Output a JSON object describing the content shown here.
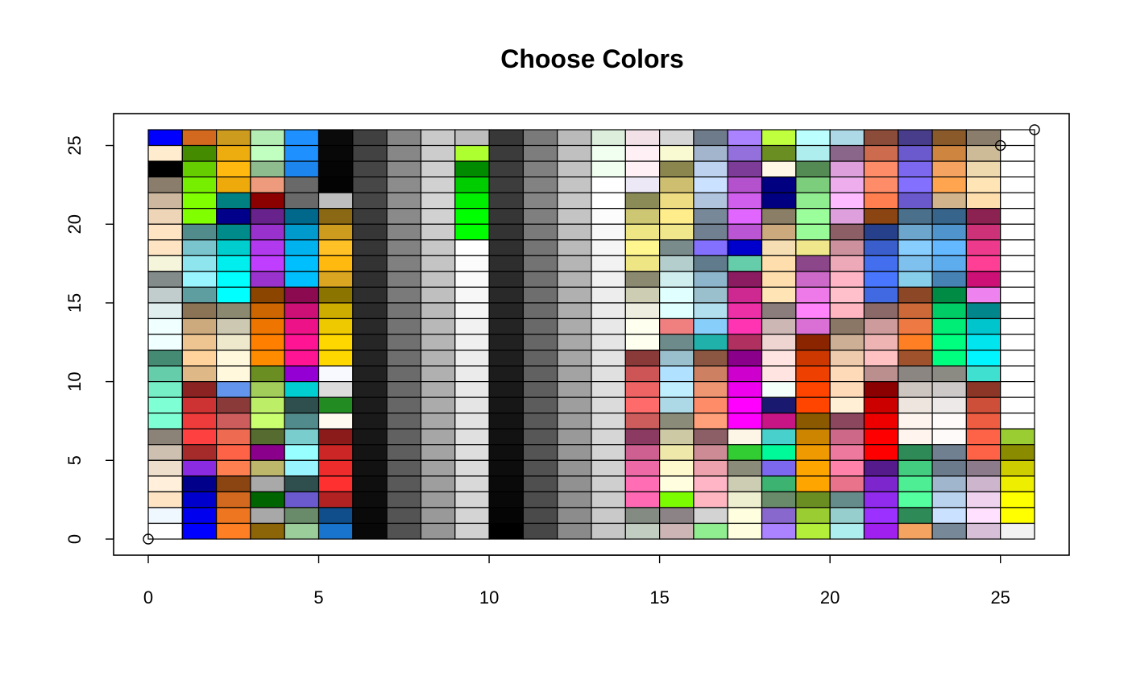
{
  "chart_data": {
    "type": "heatmap",
    "title": "Choose Colors",
    "xlabel": "",
    "ylabel": "",
    "xlim": [
      0,
      26
    ],
    "ylim": [
      0,
      26
    ],
    "x_ticks": [
      0,
      5,
      10,
      15,
      20,
      25
    ],
    "y_ticks": [
      0,
      5,
      10,
      15,
      20,
      25
    ],
    "points": [
      {
        "x": 0,
        "y": 0
      },
      {
        "x": 25,
        "y": 25
      },
      {
        "x": 26,
        "y": 26
      }
    ],
    "rows_top_to_bottom": [
      [
        "#0000FF",
        "#D2691E",
        "#CD9B1D",
        "#B4EEB4",
        "#1E90FF",
        "#0A0A0A",
        "#404040",
        "#858585",
        "#C9C9C9",
        "#BDBDBD",
        "#383838",
        "#7A7A7A",
        "#BABABA",
        "#DDEEDD",
        "#F2E1E6",
        "#D6D6D6",
        "#6E7B8B",
        "#AB82FF",
        "#C0FF3E",
        "#BBFFFF",
        "#ADD8E6",
        "#8B4C39",
        "#483D8B",
        "#8B5A2B",
        "#8B7D6B",
        "#FFFFFF"
      ],
      [
        "#FFEBCD",
        "#458B00",
        "#EEAD0E",
        "#C1FFC1",
        "#1E90FF",
        "#080808",
        "#424242",
        "#878787",
        "#CCCCCC",
        "#ADFF2F",
        "#3B3B3B",
        "#7D7D7D",
        "#C0C0C0",
        "#F0FFF0",
        "#FFF0F5",
        "#FAFAD2",
        "#A2B5CD",
        "#9370DB",
        "#6B8E23",
        "#AEEEEE",
        "#8B668B",
        "#CD6B4F",
        "#6A5ACD",
        "#CD853F",
        "#CDBA96",
        "#FFFFFF"
      ],
      [
        "#000000",
        "#66CD00",
        "#FFB90F",
        "#8FBC8F",
        "#1C86EE",
        "#050505",
        "#454545",
        "#8A8A8A",
        "#CFCFCF",
        "#008B00",
        "#3D3D3D",
        "#808080",
        "#C2C2C2",
        "#F0FFF0",
        "#FFF0F5",
        "#8B864E",
        "#BCD2EE",
        "#7D3C98",
        "#FFF8E7",
        "#548B54",
        "#DDA0DD",
        "#FF8C69",
        "#7B68EE",
        "#F4A460",
        "#EED8AE",
        "#FFFFFF"
      ],
      [
        "#8B7D6B",
        "#76EE00",
        "#EEA90A",
        "#EE9A7C",
        "#696969",
        "#030303",
        "#474747",
        "#8C8C8C",
        "#D1D1D1",
        "#00CD00",
        "#3D3D3D",
        "#828282",
        "#C4C4C4",
        "#FFFFFF",
        "#EDE8F6",
        "#CDBE70",
        "#CAE1FF",
        "#B452CD",
        "#000080",
        "#7CCD7C",
        "#EEAEEE",
        "#FF8C69",
        "#8470FF",
        "#FFA54F",
        "#FFE4B5",
        "#FFFFFF"
      ],
      [
        "#CDB79E",
        "#7FFF00",
        "#008080",
        "#8B0000",
        "#696969",
        "#BEBEBE",
        "#474747",
        "#8F8F8F",
        "#D4D4D4",
        "#00EE00",
        "#3B3B3B",
        "#858585",
        "#C7C7C7",
        "#FFFFFF",
        "#8B8B58",
        "#EEDC82",
        "#B0C4DE",
        "#D15FEE",
        "#000080",
        "#90EE90",
        "#FFBBFF",
        "#FF7F50",
        "#6959CD",
        "#D2B48C",
        "#FFDEAD",
        "#FFFFFF"
      ],
      [
        "#EED5B7",
        "#7FFF00",
        "#00008B",
        "#68228B",
        "#00688B",
        "#8B6914",
        "#3B3B3B",
        "#8A8A8A",
        "#D1D1D1",
        "#00FF00",
        "#363636",
        "#7F7F7F",
        "#C4C4C4",
        "#FCFCFC",
        "#CDC673",
        "#FFEC8B",
        "#778899",
        "#E066FF",
        "#8B7E66",
        "#9AFF9A",
        "#DDA0DD",
        "#8B4513",
        "#4A708B",
        "#36648B",
        "#8B2252",
        "#FFFFFF"
      ],
      [
        "#FFE4C4",
        "#528B8B",
        "#008B8B",
        "#9932CC",
        "#009ACD",
        "#CD9B1D",
        "#363636",
        "#858585",
        "#CCCCCC",
        "#00FF00",
        "#333333",
        "#7A7A7A",
        "#BFBFBF",
        "#F7F7F7",
        "#EEE685",
        "#F0E68C",
        "#708090",
        "#BA55D3",
        "#CDAA7D",
        "#98FB98",
        "#8B5F65",
        "#27408B",
        "#6CA6CD",
        "#4F94CD",
        "#CD3278",
        "#FFFFFF"
      ],
      [
        "#FFE4C4",
        "#7AC5CD",
        "#00CDCD",
        "#B23AEE",
        "#00B2EE",
        "#FFC125",
        "#363636",
        "#828282",
        "#C7C7C7",
        "#FFFFFF",
        "#303030",
        "#757575",
        "#BABABA",
        "#F5F5F5",
        "#FFF68F",
        "#7A8B8B",
        "#8470FF",
        "#0000CD",
        "#F5DEB3",
        "#F0E68C",
        "#CD919E",
        "#3A5FCD",
        "#87CEFF",
        "#63B8FF",
        "#EE3A8C",
        "#FFFFFF"
      ],
      [
        "#F5F5DC",
        "#8EE5EE",
        "#00EEEE",
        "#BF3EFF",
        "#00BFFF",
        "#FFB90F",
        "#333333",
        "#808080",
        "#C4C4C4",
        "#FCFCFC",
        "#2E2E2E",
        "#737373",
        "#B5B5B5",
        "#F2F2F2",
        "#EEE685",
        "#B4CDCD",
        "#607B8B",
        "#66CDAA",
        "#FFDEAD",
        "#8B4789",
        "#EEA9B8",
        "#436EEE",
        "#7EC0EE",
        "#5CACEE",
        "#FF3E96",
        "#FFFFFF"
      ],
      [
        "#838B8B",
        "#98F5FF",
        "#00FFFF",
        "#9A32CD",
        "#00BFFF",
        "#DAA520",
        "#303030",
        "#7D7D7D",
        "#C2C2C2",
        "#FAFAFA",
        "#2B2B2B",
        "#707070",
        "#B3B3B3",
        "#F0F0F0",
        "#8B8970",
        "#D1EEEE",
        "#8DB6CD",
        "#8B1C62",
        "#FFDEAD",
        "#CD69C9",
        "#FFB5C5",
        "#4876FF",
        "#87CEEB",
        "#4682B4",
        "#CD1076",
        "#FFFFFF"
      ],
      [
        "#C1CDCD",
        "#5F9EA0",
        "#00FFFF",
        "#8B4500",
        "#8B0A50",
        "#8B7500",
        "#2E2E2E",
        "#7A7A7A",
        "#BFBFBF",
        "#F7F7F7",
        "#292929",
        "#6E6E6E",
        "#B0B0B0",
        "#EDEDED",
        "#CDCDB4",
        "#E0FFFF",
        "#9AC0CD",
        "#CD2990",
        "#FFE4B5",
        "#EE7AE9",
        "#FFC0CB",
        "#4169E1",
        "#8B4726",
        "#008B45",
        "#EE82EE",
        "#FFFFFF"
      ],
      [
        "#E0EEEE",
        "#8B7355",
        "#8B8970",
        "#CD6600",
        "#CD1076",
        "#CDAD00",
        "#2B2B2B",
        "#757575",
        "#BABABA",
        "#F5F5F5",
        "#262626",
        "#6B6B6B",
        "#ADADAD",
        "#EBEBEB",
        "#EEEEE0",
        "#E0FFFF",
        "#B2DFEE",
        "#EE30A7",
        "#8B7D7B",
        "#FF83FA",
        "#FFB6C1",
        "#8B6969",
        "#CD6839",
        "#00CD66",
        "#00868B",
        "#FFFFFF"
      ],
      [
        "#F0FFFF",
        "#CDAA7D",
        "#CDC8B1",
        "#EE7600",
        "#EE1289",
        "#EEC900",
        "#292929",
        "#737373",
        "#B8B8B8",
        "#F2F2F2",
        "#242424",
        "#696969",
        "#ABABAB",
        "#E8E8E8",
        "#FFFFF0",
        "#F08080",
        "#87CEFA",
        "#FF34B3",
        "#CDB7B5",
        "#DA70D6",
        "#8B7765",
        "#CD9B9B",
        "#EE7942",
        "#00EE76",
        "#00C5CD",
        "#FFFFFF"
      ],
      [
        "#F0FFFF",
        "#EEC591",
        "#EEE8CD",
        "#FF7F00",
        "#FF1493",
        "#FFD700",
        "#262626",
        "#707070",
        "#B5B5B5",
        "#F0F0F0",
        "#212121",
        "#666666",
        "#A8A8A8",
        "#E5E5E5",
        "#FFFFF0",
        "#6E8B8B",
        "#20B2AA",
        "#B03060",
        "#EED5D2",
        "#8B2500",
        "#CDAF95",
        "#EEB4B4",
        "#FF7F24",
        "#00FF7F",
        "#00E5EE",
        "#FFFFFF"
      ],
      [
        "#458B74",
        "#FFD39B",
        "#FFF8DC",
        "#FF8C00",
        "#FF1493",
        "#FFD700",
        "#242424",
        "#6E6E6E",
        "#B3B3B3",
        "#EDEDED",
        "#1F1F1F",
        "#636363",
        "#A6A6A6",
        "#E3E3E3",
        "#8B3A3A",
        "#9AC0CD",
        "#8B5742",
        "#8B008B",
        "#FFE4E1",
        "#CD3700",
        "#EECBAD",
        "#FFC1C1",
        "#A0522D",
        "#00FF7F",
        "#00F5FF",
        "#FFFFFF"
      ],
      [
        "#66CDAA",
        "#DEB887",
        "#FFF8DC",
        "#6B8E23",
        "#9400D3",
        "#F8F8FF",
        "#212121",
        "#6B6B6B",
        "#B0B0B0",
        "#EBEBEB",
        "#1C1C1C",
        "#616161",
        "#A3A3A3",
        "#E0E0E0",
        "#CD5555",
        "#B0E2FF",
        "#CD8162",
        "#CD00CD",
        "#FFE4E1",
        "#EE4000",
        "#FFDAB9",
        "#BC8F8F",
        "#8B8682",
        "#8B8B83",
        "#40E0D0",
        "#FFFFFF"
      ],
      [
        "#76EEC6",
        "#8B2323",
        "#6495ED",
        "#A2CD5A",
        "#00CED1",
        "#DCDCDC",
        "#1F1F1F",
        "#696969",
        "#ADADAD",
        "#E8E8E8",
        "#1A1A1A",
        "#5E5E5E",
        "#A1A1A1",
        "#DEDEDE",
        "#EE6363",
        "#BFEFFF",
        "#EE9572",
        "#EE00EE",
        "#F5FFFA",
        "#FF4500",
        "#FFDAB9",
        "#8B0000",
        "#CDC5BF",
        "#CDC9C9",
        "#8B3626",
        "#FFFFFF"
      ],
      [
        "#7FFFD4",
        "#CD3333",
        "#8B3A3A",
        "#BCEE68",
        "#2F4F4F",
        "#228B22",
        "#1C1C1C",
        "#666666",
        "#ABABAB",
        "#E5E5E5",
        "#171717",
        "#5C5C5C",
        "#9E9E9E",
        "#DBDBDB",
        "#FF6A6A",
        "#ADD8E6",
        "#FF8C69",
        "#FF00FF",
        "#191970",
        "#FF4500",
        "#FFEFD5",
        "#CD0000",
        "#EEE5DE",
        "#EEE9E9",
        "#CD4F39",
        "#FFFFFF"
      ],
      [
        "#7FFFD4",
        "#EE3B3B",
        "#CD5C5C",
        "#CAFF70",
        "#528B8B",
        "#FFFAF0",
        "#1A1A1A",
        "#636363",
        "#A8A8A8",
        "#E3E3E3",
        "#141414",
        "#595959",
        "#9C9C9C",
        "#D9D9D9",
        "#CD5C5C",
        "#8B8B7A",
        "#FFA07A",
        "#FF00FF",
        "#C71585",
        "#8B5A00",
        "#8B475D",
        "#EE0000",
        "#FFF5EE",
        "#FFFAFA",
        "#EE5C42",
        "#FFFFFF"
      ],
      [
        "#8B8378",
        "#FF4040",
        "#EE6A50",
        "#556B2F",
        "#79CDCD",
        "#8B1A1A",
        "#171717",
        "#616161",
        "#A6A6A6",
        "#E0E0E0",
        "#121212",
        "#575757",
        "#999999",
        "#D6D6D6",
        "#8B3A62",
        "#CDC9A5",
        "#8B5F65",
        "#FDF5E6",
        "#48D1CC",
        "#CD8500",
        "#CD6889",
        "#FF0000",
        "#FFF5EE",
        "#FFFAFA",
        "#FF6347",
        "#9ACD32"
      ],
      [
        "#CDC0B0",
        "#A52A2A",
        "#FF6347",
        "#8B008B",
        "#97FFFF",
        "#CD2626",
        "#141414",
        "#5E5E5E",
        "#A3A3A3",
        "#DEDEDE",
        "#0F0F0F",
        "#545454",
        "#969696",
        "#D4D4D4",
        "#CD6090",
        "#EEE8AA",
        "#CD8C95",
        "#32CD32",
        "#00FA9A",
        "#EE9A00",
        "#EE799F",
        "#FF0000",
        "#2E8B57",
        "#708090",
        "#FF6347",
        "#8B8B00"
      ],
      [
        "#EEDFCC",
        "#8A2BE2",
        "#FF7F50",
        "#BDB76B",
        "#98F5FF",
        "#EE2C2C",
        "#121212",
        "#5C5C5C",
        "#A1A1A1",
        "#DBDBDB",
        "#0D0D0D",
        "#525252",
        "#949494",
        "#D1D1D1",
        "#EE6AA7",
        "#FFFACD",
        "#EEA2AD",
        "#8B8B7A",
        "#7B68EE",
        "#FFA500",
        "#FF82AB",
        "#551A8B",
        "#43CD80",
        "#6C7B8B",
        "#8B7B8B",
        "#CDCD00"
      ],
      [
        "#FFEFDB",
        "#00008B",
        "#8B4513",
        "#A9A9A9",
        "#2F4F4F",
        "#FF3030",
        "#0F0F0F",
        "#595959",
        "#9E9E9E",
        "#D9D9D9",
        "#0A0A0A",
        "#4F4F4F",
        "#919191",
        "#CFCFCF",
        "#FF6EB4",
        "#FFFFE0",
        "#FFB5C5",
        "#CDCDB4",
        "#3CB371",
        "#FFA500",
        "#E9738B",
        "#7D26CD",
        "#4EEE94",
        "#9FB6CD",
        "#CDB5CD",
        "#EEEE00"
      ],
      [
        "#FFE4C4",
        "#0000CD",
        "#D2691E",
        "#006400",
        "#6A5ACD",
        "#B22222",
        "#0D0D0D",
        "#575757",
        "#9C9C9C",
        "#D6D6D6",
        "#080808",
        "#4D4D4D",
        "#8F8F8F",
        "#CCCCCC",
        "#FF69B4",
        "#7CFC00",
        "#FFB6C1",
        "#EEEED1",
        "#698B69",
        "#6B8E23",
        "#668B8B",
        "#912CEE",
        "#54FF9F",
        "#B9D3EE",
        "#EED2EE",
        "#FFFF00"
      ],
      [
        "#F0F8FF",
        "#0000EE",
        "#EE7621",
        "#A8A8A8",
        "#698B69",
        "#104E8B",
        "#0A0A0A",
        "#545454",
        "#999999",
        "#D4D4D4",
        "#050505",
        "#4A4A4A",
        "#8C8C8C",
        "#C9C9C9",
        "#838B83",
        "#8B8386",
        "#D3D3D3",
        "#FFFFE0",
        "#8968CD",
        "#9ACD32",
        "#96CDCD",
        "#9B30FF",
        "#2E8B57",
        "#CAE1FF",
        "#FFE1FF",
        "#FFFF00"
      ],
      [
        "#FFFFFF",
        "#0000FF",
        "#FF7F24",
        "#8B6508",
        "#9BCD9B",
        "#1874CD",
        "#080808",
        "#525252",
        "#969696",
        "#D1D1D1",
        "#000000",
        "#474747",
        "#8A8A8A",
        "#C7C7C7",
        "#C1CDC1",
        "#CDB5B5",
        "#90EE90",
        "#FFFFE0",
        "#AB82FF",
        "#B3EE3A",
        "#AEEEEE",
        "#A020F0",
        "#F4A460",
        "#778899",
        "#D8BFD8",
        "#F2F2F2"
      ]
    ]
  }
}
